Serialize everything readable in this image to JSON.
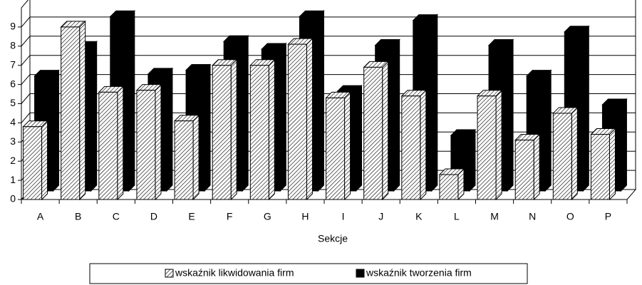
{
  "chart_data": {
    "type": "bar3d",
    "x_label": "Sekcje",
    "categories": [
      "A",
      "B",
      "C",
      "D",
      "E",
      "F",
      "G",
      "H",
      "I",
      "J",
      "K",
      "L",
      "M",
      "N",
      "O",
      "P"
    ],
    "series": [
      {
        "name": "wskaźnik likwidowania firm",
        "color": "#ffffff",
        "pattern": "hatch",
        "values": [
          3.8,
          9.0,
          5.6,
          5.7,
          4.1,
          7.0,
          7.0,
          8.1,
          5.3,
          6.9,
          5.4,
          1.3,
          5.4,
          3.1,
          4.5,
          3.4
        ]
      },
      {
        "name": "wskaźnik tworzenia firm",
        "color": "#000000",
        "pattern": "solid",
        "values": [
          6.0,
          7.5,
          9.1,
          6.1,
          6.3,
          7.8,
          7.4,
          9.1,
          5.2,
          7.6,
          8.9,
          2.9,
          7.6,
          6.0,
          8.3,
          4.5
        ]
      }
    ],
    "ylim": [
      0,
      10
    ],
    "yticks": [
      0,
      1,
      2,
      3,
      4,
      5,
      6,
      7,
      8,
      9
    ],
    "grid": true
  }
}
